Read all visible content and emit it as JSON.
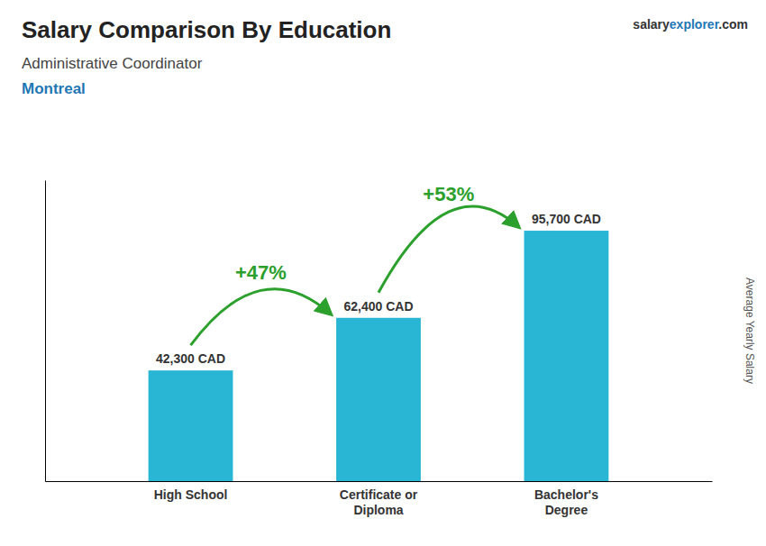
{
  "chart_data": {
    "type": "bar",
    "title": "Salary Comparison By Education",
    "subtitle": [
      "Administrative Coordinator",
      "Montreal"
    ],
    "brand": [
      "salary",
      "explorer",
      ".com"
    ],
    "ylabel": "Average Yearly Salary",
    "categories": [
      "High School",
      "Certificate or\nDiploma",
      "Bachelor's\nDegree"
    ],
    "values": [
      42300,
      62400,
      95700
    ],
    "value_labels": [
      "42,300 CAD",
      "62,400 CAD",
      "95,700 CAD"
    ],
    "data_labels": true,
    "color": "#29b6d4",
    "ylim": [
      0,
      115000
    ],
    "tick_labels": "x",
    "grid": false,
    "annotations": [
      "+47%",
      "+53%"
    ]
  }
}
